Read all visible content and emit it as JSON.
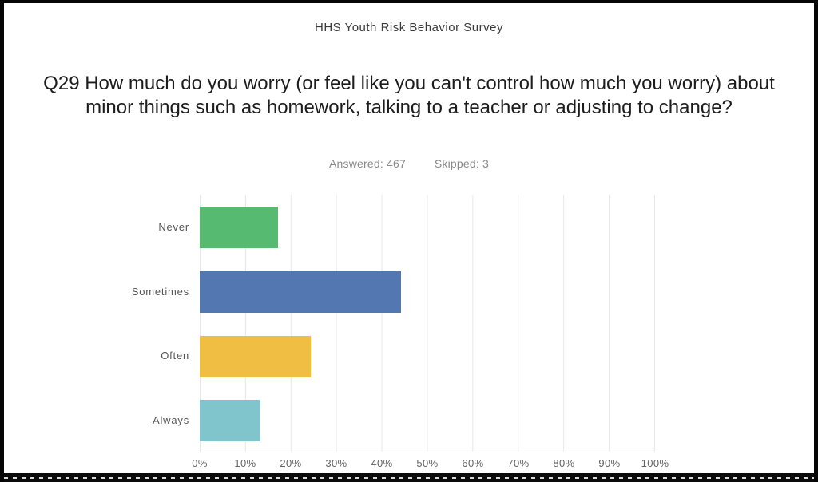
{
  "header": {
    "title": "HHS Youth Risk Behavior Survey"
  },
  "question": {
    "title": "Q29 How much do you worry (or feel like you can't control how much you worry) about minor things such as homework, talking to a teacher or adjusting to change?"
  },
  "stats": {
    "answered": "Answered: 467",
    "skipped": "Skipped: 3"
  },
  "chart_data": {
    "type": "bar",
    "orientation": "horizontal",
    "title": "",
    "xlabel": "",
    "ylabel": "",
    "categories": [
      "Never",
      "Sometimes",
      "Often",
      "Always"
    ],
    "values": [
      17.2,
      44.3,
      24.4,
      13.2
    ],
    "value_unit": "percent",
    "colors": [
      "#56BA70",
      "#5377B0",
      "#EFBE43",
      "#80C5CB"
    ],
    "xlim": [
      0,
      100
    ],
    "x_tick_labels": [
      "0%",
      "10%",
      "20%",
      "30%",
      "40%",
      "50%",
      "60%",
      "70%",
      "80%",
      "90%",
      "100%"
    ],
    "grid": "vertical gridlines every 10%",
    "legend": "none"
  }
}
